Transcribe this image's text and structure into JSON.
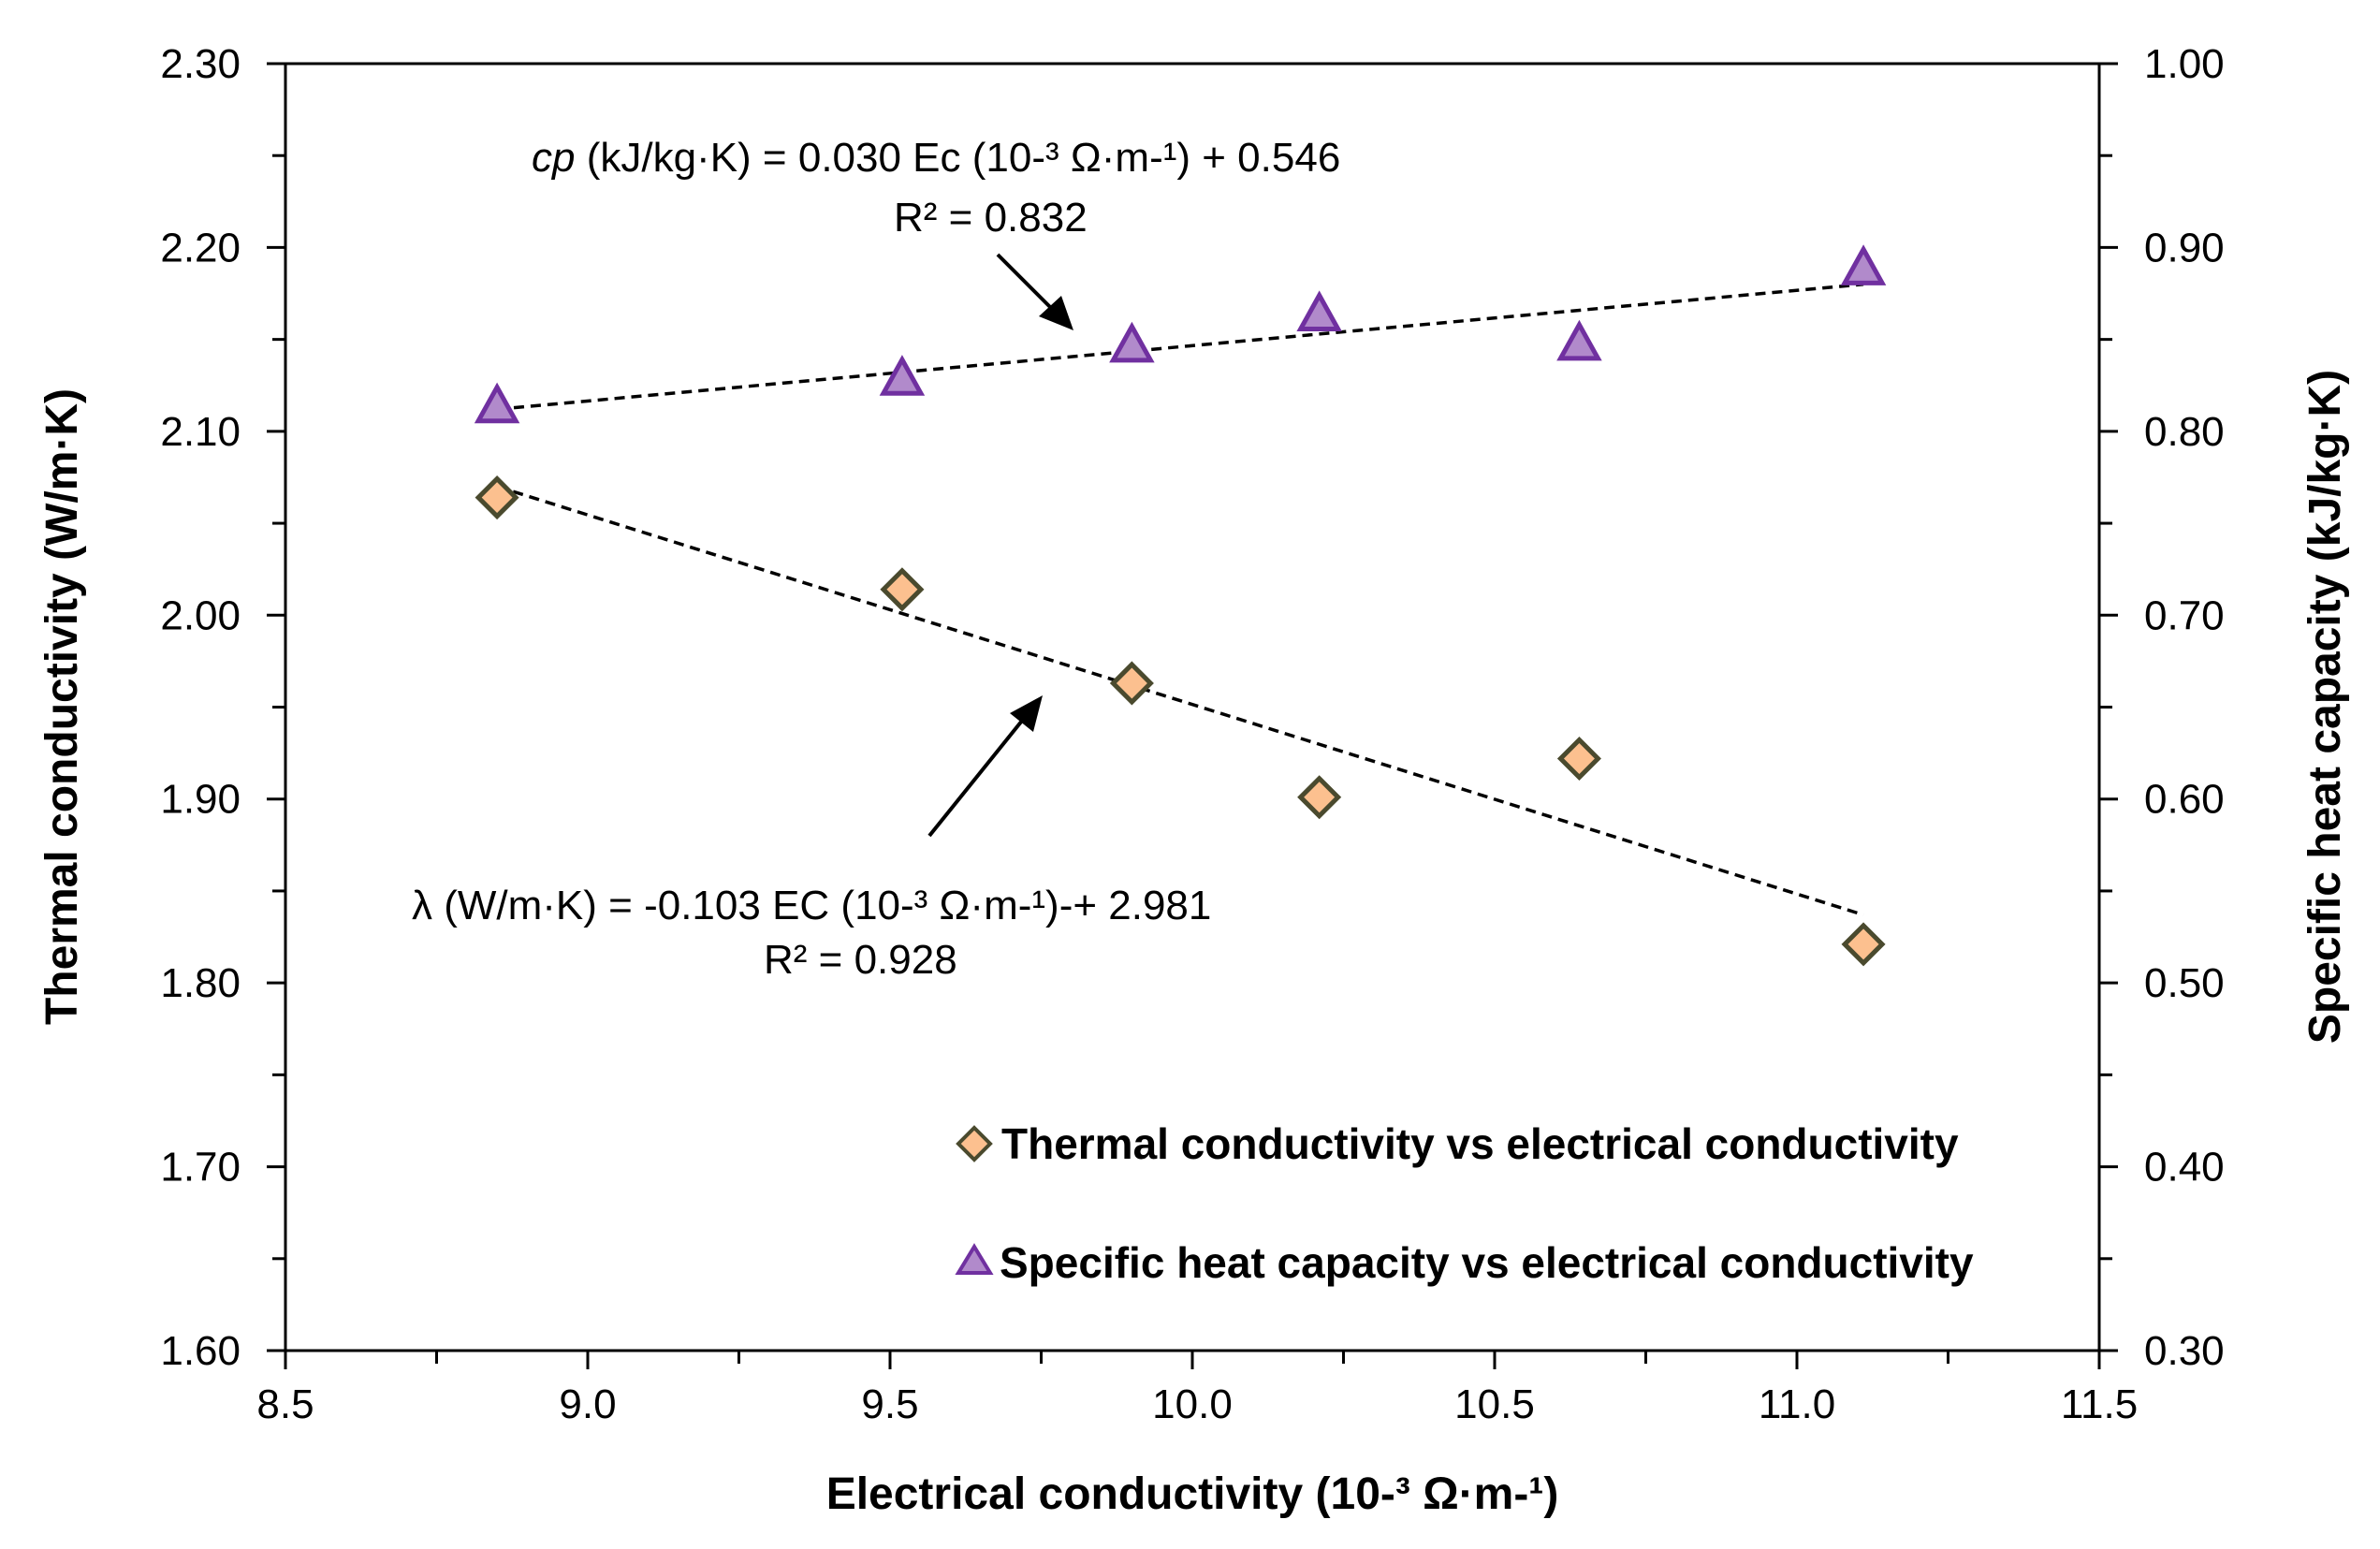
{
  "chart_data": {
    "type": "scatter",
    "xlabel": "Electrical conductivity  (10-³ Ω·m-¹)",
    "ylabel": "Thermal conductivity  (W/m·K)",
    "y2label": "Specific heat capacity  (kJ/kg·K)",
    "xlim": [
      8.5,
      11.5
    ],
    "ylim": [
      1.6,
      2.3
    ],
    "y2lim": [
      0.3,
      1.0
    ],
    "xticks": [
      "8.5",
      "9.0",
      "9.5",
      "10.0",
      "10.5",
      "11.0",
      "11.5"
    ],
    "yticks": [
      "1.60",
      "1.70",
      "1.80",
      "1.90",
      "2.00",
      "2.10",
      "2.20",
      "2.30"
    ],
    "y2ticks": [
      "0.30",
      "0.40",
      "0.50",
      "0.60",
      "0.70",
      "0.80",
      "0.90",
      "1.00"
    ],
    "series": [
      {
        "name": "Thermal conductivity vs electrical conductivity",
        "axis": "left",
        "marker": "diamond",
        "color": "#FCC08F",
        "edge": "#4A4A2E",
        "x": [
          8.85,
          9.52,
          9.9,
          10.21,
          10.64,
          11.11
        ],
        "y": [
          2.064,
          2.014,
          1.963,
          1.901,
          1.922,
          1.821
        ],
        "trend": {
          "x": [
            8.85,
            11.11
          ],
          "y": [
            2.07,
            1.837
          ]
        }
      },
      {
        "name": "Specific heat capacity vs electrical conductivity",
        "axis": "right",
        "marker": "triangle",
        "color": "#B18ACB",
        "edge": "#7030A0",
        "x": [
          8.85,
          9.52,
          9.9,
          10.21,
          10.64,
          11.11
        ],
        "y": [
          0.813,
          0.828,
          0.846,
          0.863,
          0.847,
          0.888
        ],
        "trend": {
          "x": [
            8.85,
            11.11
          ],
          "y": [
            0.812,
            0.88
          ]
        }
      }
    ],
    "annotations": {
      "cp_equation_var": "cp",
      "cp_equation_rest": " (kJ/kg·K)   = 0.030 Ec (10-³ Ω·m-¹) + 0.546",
      "cp_r2": "R² = 0.832",
      "lambda_equation": "λ (W/m·K) = -0.103 EC (10-³ Ω·m-¹)-+ 2.981",
      "lambda_r2": "R² = 0.928"
    },
    "legend_position": "bottom-right"
  }
}
